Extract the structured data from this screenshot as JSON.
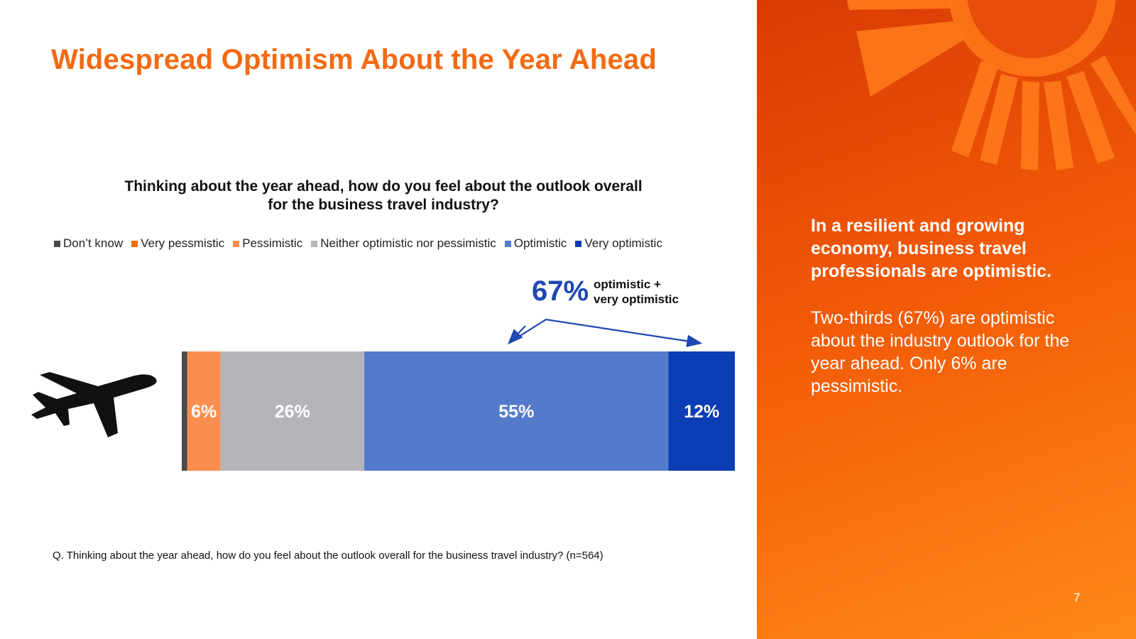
{
  "slide": {
    "title": "Widespread Optimism About the Year Ahead",
    "footnote": "Q. Thinking about the year ahead, how do you feel about the outlook overall for the business travel industry? (n=564)",
    "page_number": "7"
  },
  "callout": {
    "value": "67%",
    "label_line1": "optimistic +",
    "label_line2": "very optimistic"
  },
  "side_panel": {
    "heading": "In a resilient and growing economy, business travel professionals are optimistic.",
    "body": "Two-thirds (67%) are optimistic about the industry outlook for the year ahead. Only 6% are pessimistic."
  },
  "icons": {
    "plane": "airplane-icon",
    "sun": "sun-rays-icon"
  },
  "chart_data": {
    "type": "bar",
    "orientation": "horizontal-stacked-100",
    "title_line1": "Thinking about the year ahead, how do you feel about the outlook overall",
    "title_line2": "for the business travel industry?",
    "legend_position": "top",
    "series": [
      {
        "name": "Don’t know",
        "value": 1,
        "label": "",
        "color": "#4a4a4a"
      },
      {
        "name": "Very pessmistic",
        "value": 0,
        "label": "",
        "color": "#f26a12"
      },
      {
        "name": "Pessimistic",
        "value": 6,
        "label": "6%",
        "color": "#fb8e4e"
      },
      {
        "name": "Neither optimistic nor pessimistic",
        "value": 26,
        "label": "26%",
        "color": "#b3b5ba"
      },
      {
        "name": "Optimistic",
        "value": 55,
        "label": "55%",
        "color": "#547bcb"
      },
      {
        "name": "Very optimistic",
        "value": 12,
        "label": "12%",
        "color": "#0b3db5"
      }
    ],
    "xlim": [
      0,
      100
    ]
  }
}
